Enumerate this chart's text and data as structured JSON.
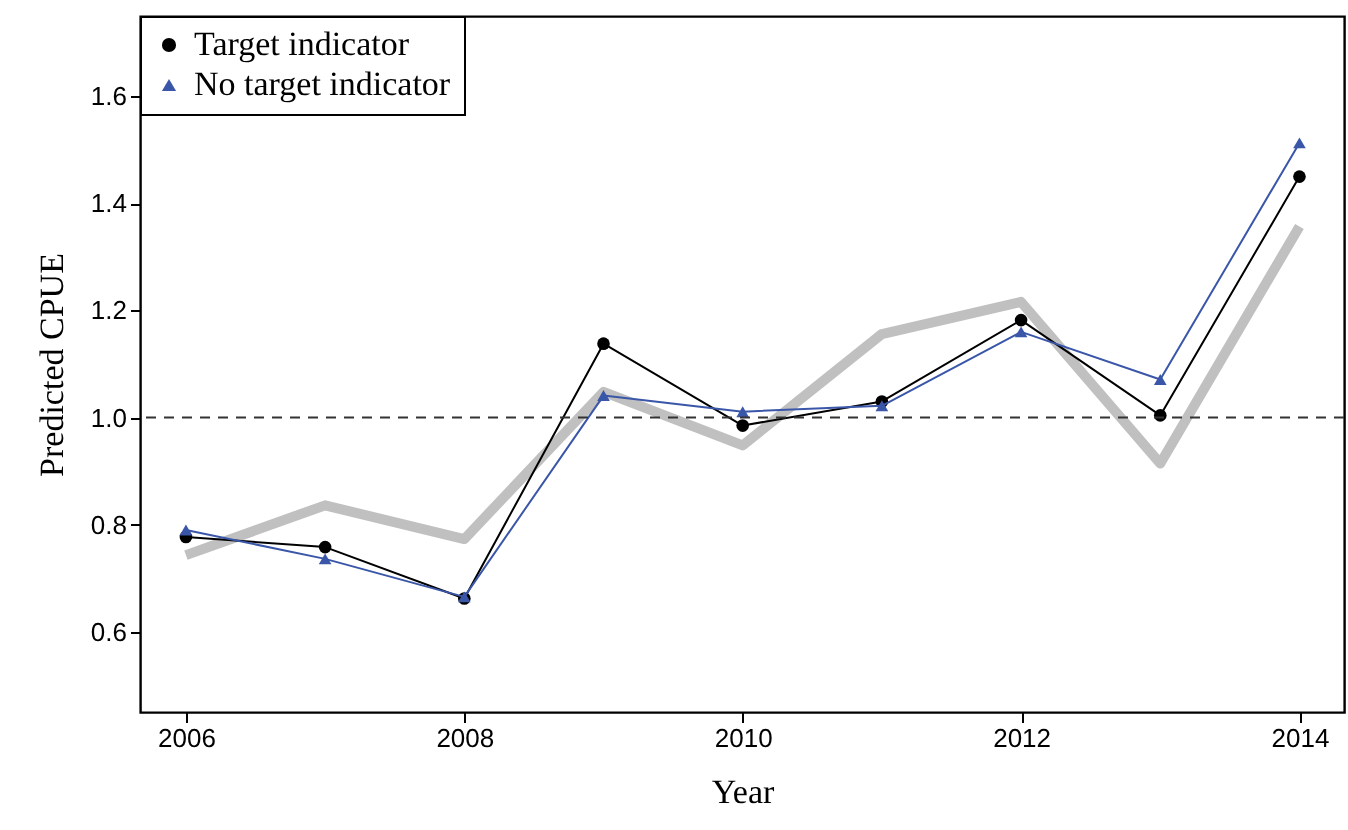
{
  "chart_data": {
    "type": "line",
    "xlabel": "Year",
    "ylabel": "Predicted CPUE",
    "x": [
      2006,
      2007,
      2008,
      2009,
      2010,
      2011,
      2012,
      2013,
      2014
    ],
    "xlim": [
      2005.67,
      2014.32
    ],
    "xticks": [
      2006,
      2008,
      2010,
      2012,
      2014
    ],
    "ylim": [
      0.45,
      1.75
    ],
    "yticks": [
      {
        "value": 0.6,
        "label": "0.6"
      },
      {
        "value": 0.8,
        "label": "0.8"
      },
      {
        "value": 1.0,
        "label": "1.0"
      },
      {
        "value": 1.2,
        "label": "1.2"
      },
      {
        "value": 1.4,
        "label": "1.4"
      },
      {
        "value": 1.6,
        "label": "1.6"
      }
    ],
    "series": [
      {
        "name": null,
        "color": "#c0c0c0",
        "marker": "none",
        "line_style": "solid",
        "values": [
          0.743,
          0.836,
          0.773,
          1.048,
          0.948,
          1.156,
          1.216,
          0.914,
          1.357
        ]
      },
      {
        "name": "Target indicator",
        "color": "#000000",
        "marker": "circle",
        "line_style": "solid",
        "values": [
          0.777,
          0.758,
          0.662,
          1.138,
          0.985,
          1.03,
          1.182,
          1.004,
          1.45
        ]
      },
      {
        "name": "No target indicator",
        "color": "#3a56a8",
        "marker": "triangle",
        "line_style": "solid",
        "values": [
          0.79,
          0.736,
          0.665,
          1.041,
          1.011,
          1.022,
          1.16,
          1.071,
          1.513
        ]
      }
    ],
    "ref_lines": [
      {
        "axis": "y",
        "value": 1.0,
        "label": null,
        "color": "#333333",
        "line_style": "dashed"
      }
    ],
    "grid": false,
    "legend": "top left"
  }
}
